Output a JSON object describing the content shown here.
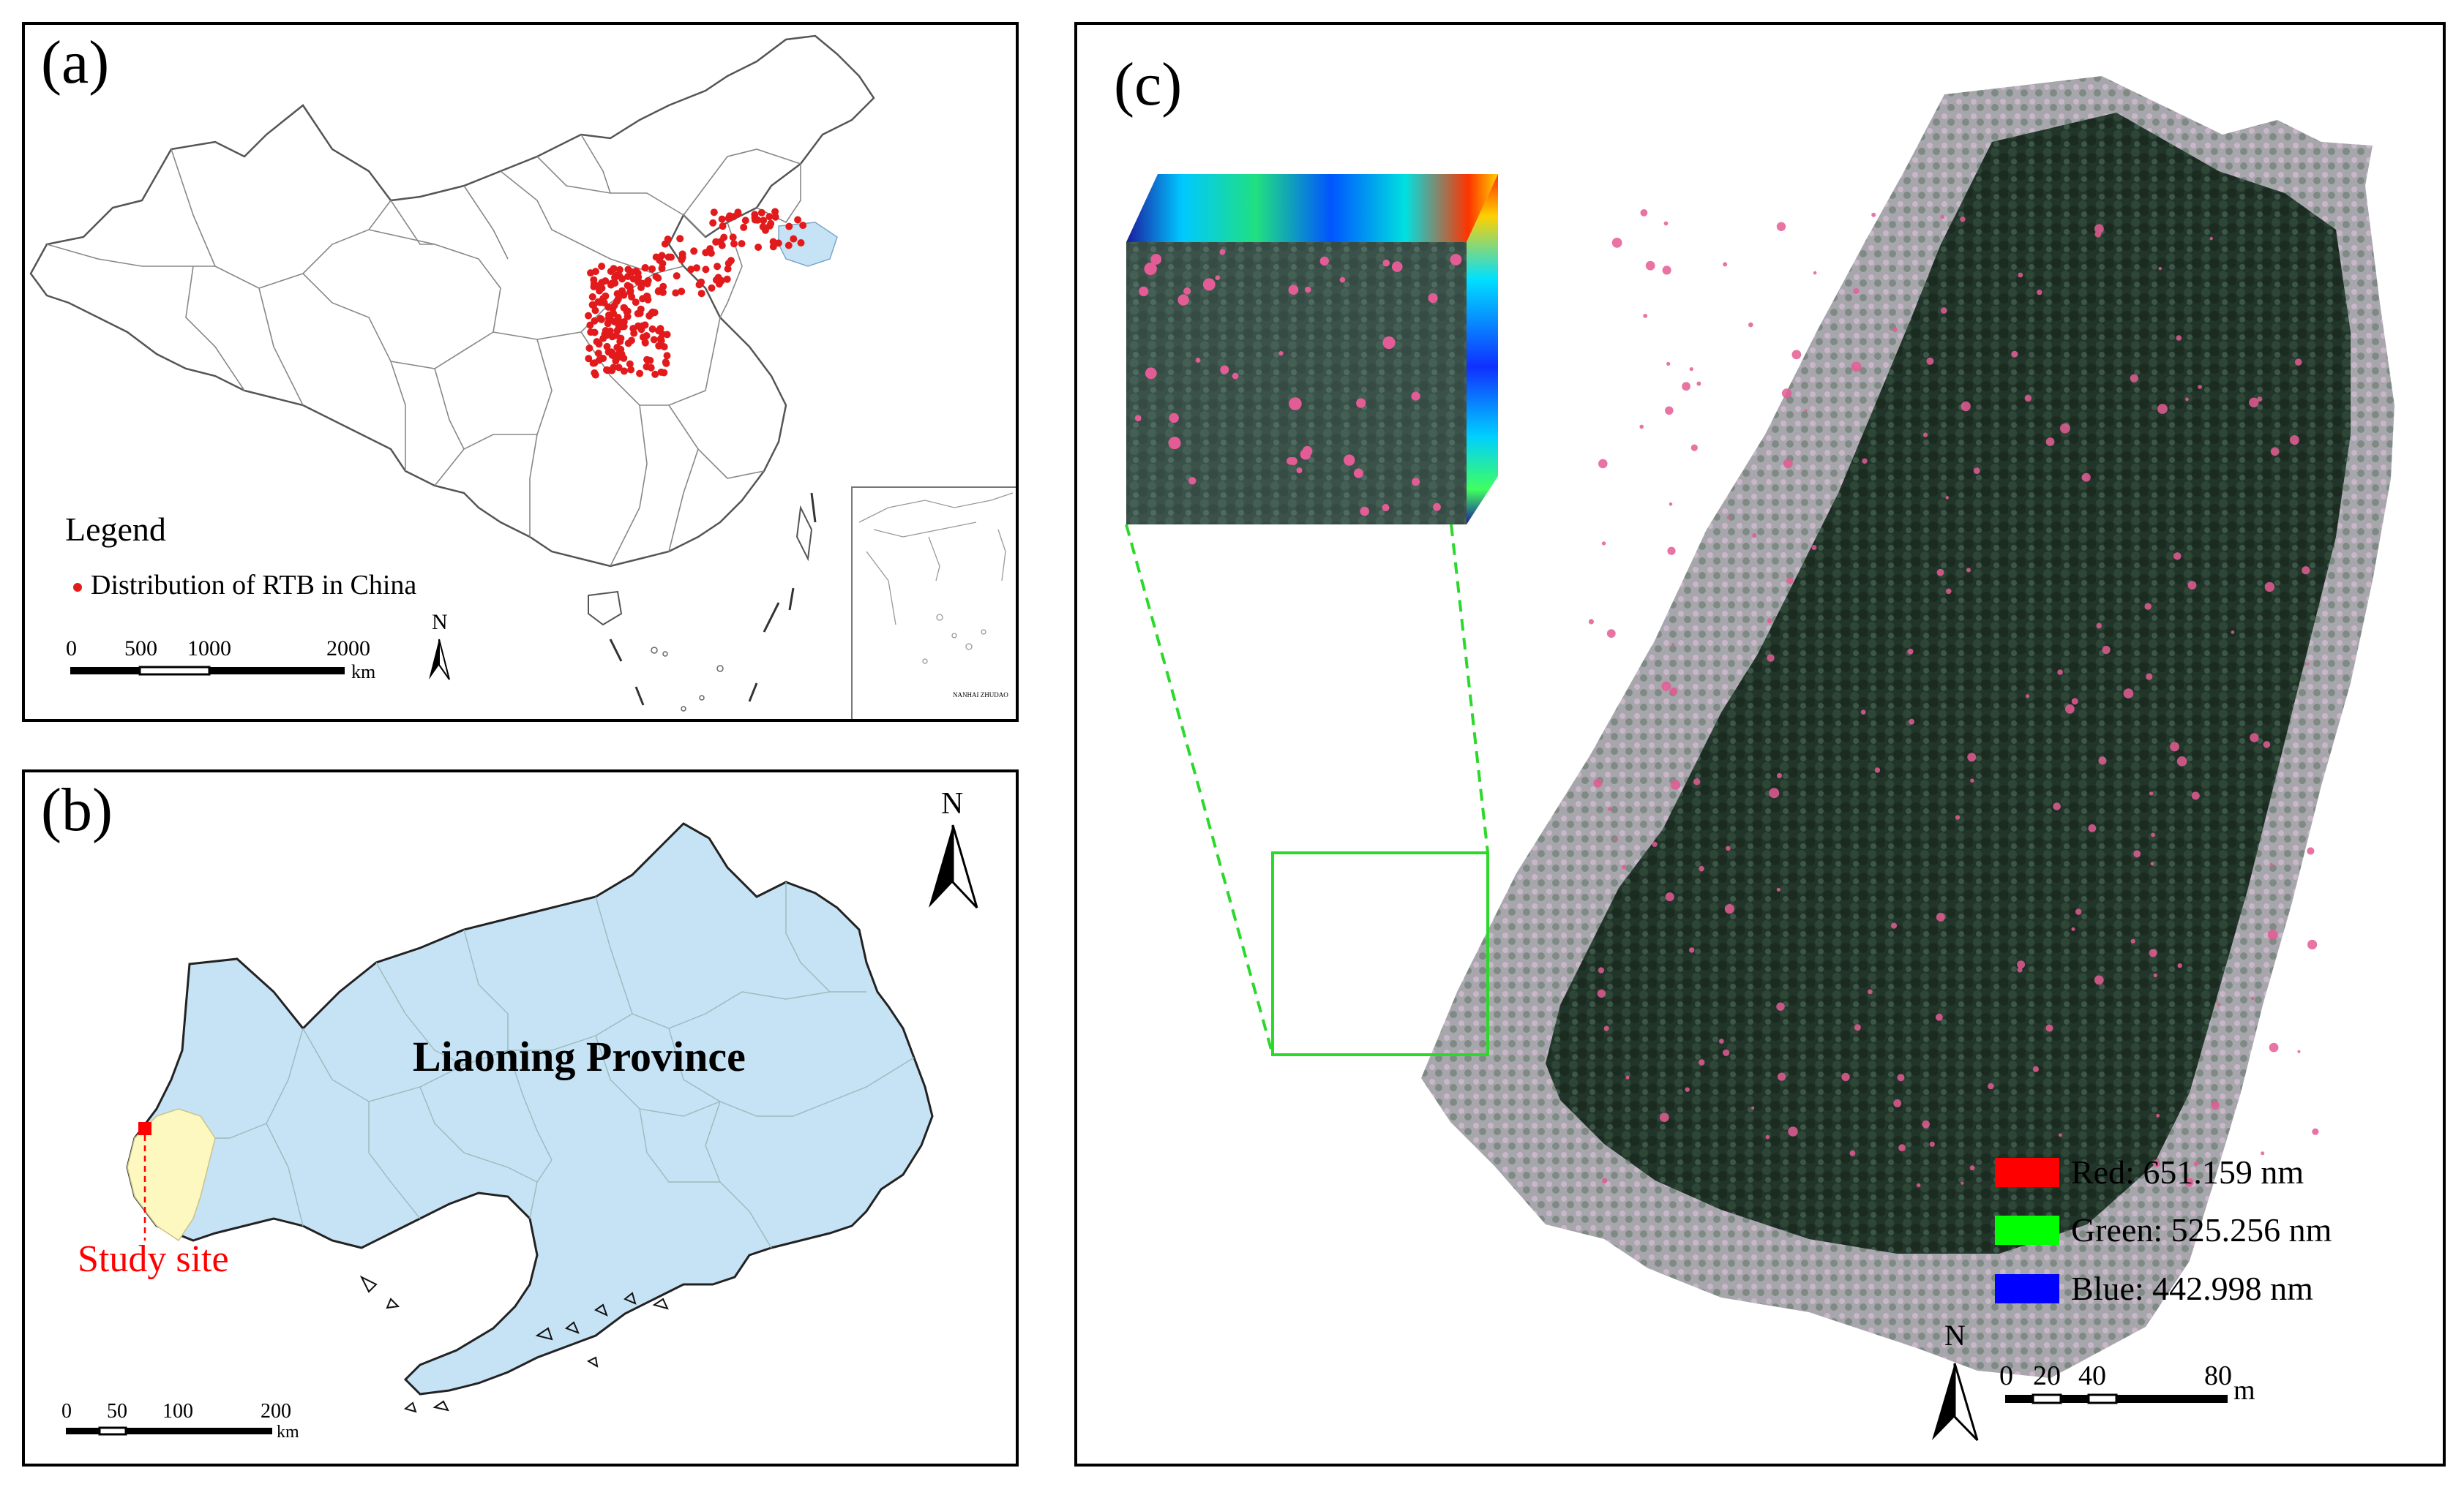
{
  "panel_a": {
    "label": "(a)",
    "legend_title": "Legend",
    "legend_item": "Distribution of RTB in China",
    "scale_ticks": [
      "0",
      "500",
      "1000",
      "2000"
    ],
    "scale_unit": "km",
    "north_label": "N",
    "inset_caption": "NANHAI ZHUDAO"
  },
  "panel_b": {
    "label": "(b)",
    "province_label": "Liaoning Province",
    "study_site_label": "Study site",
    "scale_ticks": [
      "0",
      "50",
      "100",
      "200"
    ],
    "scale_unit": "km",
    "north_label": "N"
  },
  "panel_c": {
    "label": "(c)",
    "legend": [
      {
        "label": "Red: 651.159 nm",
        "color": "#ff0000"
      },
      {
        "label": "Green: 525.256 nm",
        "color": "#00ff00"
      },
      {
        "label": "Blue: 442.998 nm",
        "color": "#0000ff"
      }
    ],
    "scale_ticks": [
      "0",
      "20",
      "40",
      "80"
    ],
    "scale_unit": "m",
    "north_label": "N"
  },
  "colors": {
    "rtb_points": "#e31a1c",
    "province_fill": "#c6e2f5",
    "study_county_fill": "#fdf7c0",
    "study_site_marker": "#ff0000",
    "zoom_box": "#2bd92b"
  }
}
